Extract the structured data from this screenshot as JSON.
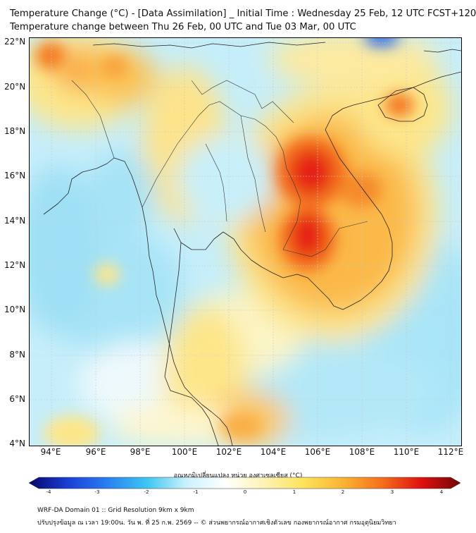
{
  "header": {
    "title_line1": "Temperature Change (°C) - [Data Assimilation] _ Initial Time : Wednesday 25 Feb, 12 UTC FCST+120",
    "title_line2": "Temperature change between Thu 26 Feb, 00 UTC and Tue 03 Mar, 00 UTC"
  },
  "map": {
    "lat_labels": [
      "22°N",
      "20°N",
      "18°N",
      "16°N",
      "14°N",
      "12°N",
      "10°N",
      "8°N",
      "6°N",
      "4°N"
    ],
    "lon_labels": [
      "94°E",
      "96°E",
      "98°E",
      "100°E",
      "102°E",
      "104°E",
      "106°E",
      "108°E",
      "110°E",
      "112°E"
    ],
    "lat_range": [
      4,
      22.2
    ],
    "lon_range": [
      93,
      112.4
    ]
  },
  "colorbar": {
    "label": "อุณหภูมิเปลี่ยนแปลง หน่วย องศาเซลเซียส (°C)",
    "ticks": [
      "-4",
      "-3",
      "-2",
      "-1",
      "0",
      "1",
      "2",
      "3",
      "4"
    ],
    "range": [
      -4,
      4
    ],
    "stops": [
      "#05066b",
      "#1b3fd6",
      "#2a7ff0",
      "#3cc6f2",
      "#c9f1fb",
      "#ffffff",
      "#fdf3b4",
      "#fde25a",
      "#fbb431",
      "#f46f1d",
      "#e0100e",
      "#6f0606"
    ]
  },
  "footer": {
    "line1": "WRF-DA Domain 01 :: Grid Resolution 9km x 9km",
    "line2": "ปรับปรุงข้อมูล ณ เวลา 19:00น. วัน พ. ที่ 25 ก.พ. 2569 -- © ส่วนพยากรณ์อากาศเชิงตัวเลข กองพยากรณ์อากาศ กรมอุตุนิยมวิทยา"
  }
}
